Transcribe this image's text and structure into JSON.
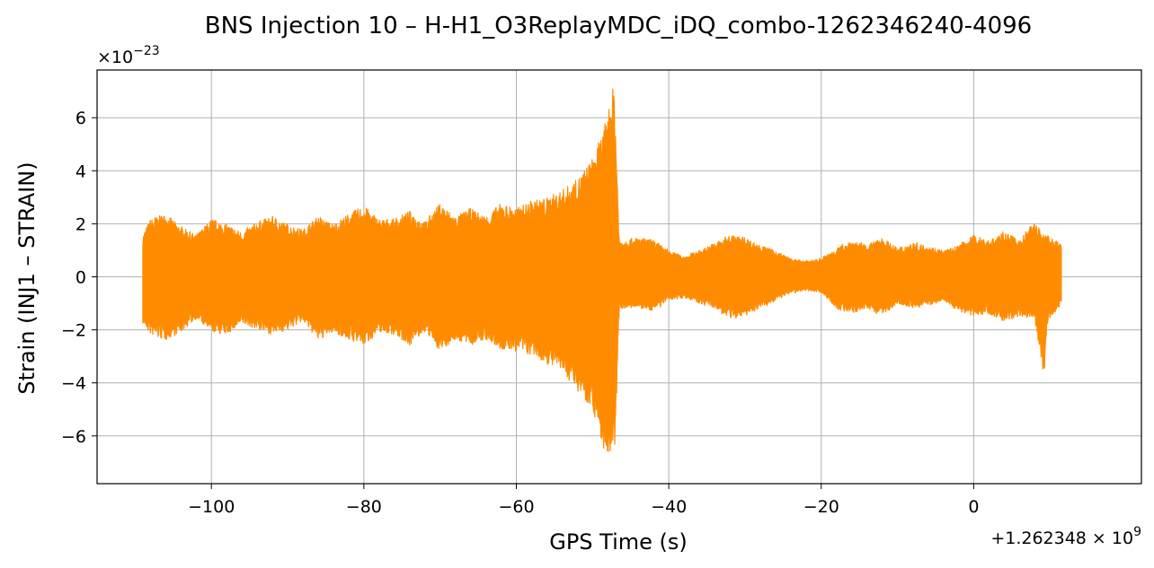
{
  "chart_data": {
    "type": "line",
    "title": "BNS Injection 10 – H-H1_O3ReplayMDC_iDQ_combo-1262346240-4096",
    "xlabel": "GPS Time (s)",
    "ylabel": "Strain (INJ1 – STRAIN)",
    "x_offset_label": "+1.262348 × 10",
    "x_offset_exponent": "9",
    "y_scale_label": "×10",
    "y_scale_exponent": "−23",
    "xlim": [
      -115,
      22
    ],
    "ylim": [
      -7.8,
      7.8
    ],
    "x_ticks": [
      -100,
      -80,
      -60,
      -40,
      -20,
      0
    ],
    "x_tick_labels": [
      "−100",
      "−80",
      "−60",
      "−40",
      "−20",
      "0"
    ],
    "y_ticks": [
      -6,
      -4,
      -2,
      0,
      2,
      4,
      6
    ],
    "y_tick_labels": [
      "−6",
      "−4",
      "−2",
      "0",
      "2",
      "4",
      "6"
    ],
    "grid": true,
    "color": "#ff8c00",
    "series": [
      {
        "x_range": [
          -109,
          11.5
        ],
        "envelope": {
          "x": [
            -109,
            -108,
            -106,
            -104,
            -102,
            -100,
            -98,
            -96,
            -94,
            -92,
            -90,
            -88,
            -86,
            -84,
            -82,
            -80,
            -78,
            -76,
            -74,
            -72,
            -70,
            -68,
            -66,
            -64,
            -62,
            -60,
            -58,
            -56,
            -54,
            -52,
            -50,
            -48.5,
            -47.2,
            -47.0,
            -46.5,
            -44,
            -42,
            -40,
            -38,
            -36,
            -34,
            -32,
            -30,
            -28,
            -26,
            -24,
            -22,
            -20,
            -18,
            -16,
            -14,
            -12,
            -10,
            -8,
            -6,
            -4,
            -2,
            0,
            2,
            4,
            6,
            8,
            9.2,
            9.6,
            10,
            11.5
          ],
          "upper": [
            1.6,
            2.2,
            2.4,
            1.9,
            1.6,
            2.2,
            2.0,
            1.7,
            2.1,
            2.3,
            2.0,
            1.8,
            2.3,
            2.0,
            2.4,
            2.7,
            2.2,
            2.2,
            2.5,
            2.1,
            2.8,
            2.3,
            2.6,
            2.3,
            2.8,
            2.6,
            2.9,
            3.0,
            3.3,
            3.7,
            4.5,
            5.6,
            7.3,
            6.0,
            1.4,
            1.5,
            1.4,
            1.0,
            0.8,
            1.0,
            1.3,
            1.6,
            1.5,
            1.2,
            1.0,
            0.7,
            0.6,
            0.7,
            1.1,
            1.4,
            1.2,
            1.5,
            1.1,
            1.3,
            1.2,
            1.0,
            1.2,
            1.6,
            1.4,
            1.7,
            1.4,
            2.1,
            1.6,
            1.7,
            1.5,
            1.3
          ],
          "lower": [
            -1.8,
            -2.2,
            -2.4,
            -2.1,
            -1.6,
            -2.1,
            -2.2,
            -1.8,
            -2.0,
            -2.2,
            -2.0,
            -1.7,
            -2.4,
            -2.1,
            -2.4,
            -2.6,
            -2.1,
            -2.2,
            -2.6,
            -2.1,
            -2.8,
            -2.4,
            -2.6,
            -2.4,
            -2.8,
            -2.8,
            -3.0,
            -3.3,
            -3.6,
            -4.3,
            -5.0,
            -6.6,
            -7.1,
            -6.0,
            -1.2,
            -1.2,
            -1.3,
            -0.9,
            -0.8,
            -1.0,
            -1.2,
            -1.6,
            -1.5,
            -1.2,
            -0.9,
            -0.6,
            -0.5,
            -0.6,
            -1.2,
            -1.4,
            -1.2,
            -1.5,
            -1.0,
            -1.2,
            -1.1,
            -0.9,
            -1.3,
            -1.5,
            -1.4,
            -1.7,
            -1.5,
            -1.6,
            -4.0,
            -1.8,
            -1.6,
            -1.1
          ]
        }
      }
    ]
  }
}
